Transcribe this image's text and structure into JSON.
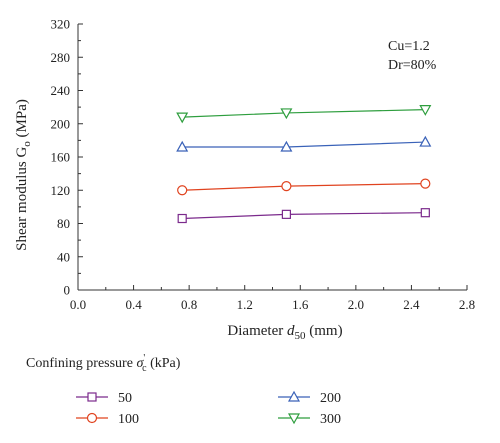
{
  "chart_data": {
    "type": "line",
    "xlabel": "Diameter d50 (mm)",
    "xlabel_parts": {
      "pre": "Diameter ",
      "var": "d",
      "sub": "50",
      "post": " (mm)"
    },
    "ylabel": "Shear modulus Go (MPa)",
    "ylabel_parts": {
      "pre": "Shear modulus G",
      "sub": "o",
      "post": " (MPa)"
    },
    "xlim": [
      0.0,
      2.8
    ],
    "ylim": [
      0,
      320
    ],
    "xticks": [
      "0.0",
      "0.4",
      "0.8",
      "1.2",
      "1.6",
      "2.0",
      "2.4",
      "2.8"
    ],
    "yticks": [
      "0",
      "40",
      "80",
      "120",
      "160",
      "200",
      "240",
      "280",
      "320"
    ],
    "annotations": [
      "Cu=1.2",
      "Dr=80%"
    ],
    "legend_title": "Confining pressure σ'c (kPa)",
    "legend_title_parts": {
      "pre": "Confining pressure ",
      "sym": "σ",
      "sup": "'",
      "sub": "c",
      "post": " (kPa)"
    },
    "legend_placement": "bottom",
    "grid": false,
    "x": [
      0.75,
      1.5,
      2.5
    ],
    "series": [
      {
        "name": "50",
        "values": [
          86,
          91,
          93
        ],
        "color": "#7b2a8c",
        "marker": "square"
      },
      {
        "name": "100",
        "values": [
          120,
          125,
          128
        ],
        "color": "#e0431f",
        "marker": "circle"
      },
      {
        "name": "200",
        "values": [
          172,
          172,
          178
        ],
        "color": "#3a62b8",
        "marker": "triangle-up"
      },
      {
        "name": "300",
        "values": [
          208,
          213,
          217
        ],
        "color": "#2e9e3e",
        "marker": "triangle-down"
      }
    ]
  }
}
